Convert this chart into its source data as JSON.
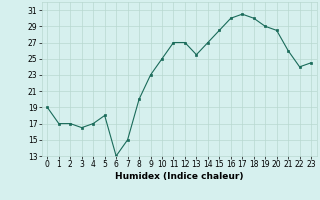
{
  "x": [
    0,
    1,
    2,
    3,
    4,
    5,
    6,
    7,
    8,
    9,
    10,
    11,
    12,
    13,
    14,
    15,
    16,
    17,
    18,
    19,
    20,
    21,
    22,
    23
  ],
  "y": [
    19,
    17,
    17,
    16.5,
    17,
    18,
    13,
    15,
    20,
    23,
    25,
    27,
    27,
    25.5,
    27,
    28.5,
    30,
    30.5,
    30,
    29,
    28.5,
    26,
    24,
    24.5
  ],
  "xlabel": "Humidex (Indice chaleur)",
  "ylim": [
    13,
    32
  ],
  "yticks": [
    13,
    15,
    17,
    19,
    21,
    23,
    25,
    27,
    29,
    31
  ],
  "xlim": [
    -0.5,
    23.5
  ],
  "xticks": [
    0,
    1,
    2,
    3,
    4,
    5,
    6,
    7,
    8,
    9,
    10,
    11,
    12,
    13,
    14,
    15,
    16,
    17,
    18,
    19,
    20,
    21,
    22,
    23
  ],
  "line_color": "#1a6b5a",
  "marker_color": "#1a6b5a",
  "bg_color": "#d6f0ee",
  "grid_color": "#b8d8d0",
  "tick_fontsize": 5.5,
  "label_fontsize": 6.5
}
